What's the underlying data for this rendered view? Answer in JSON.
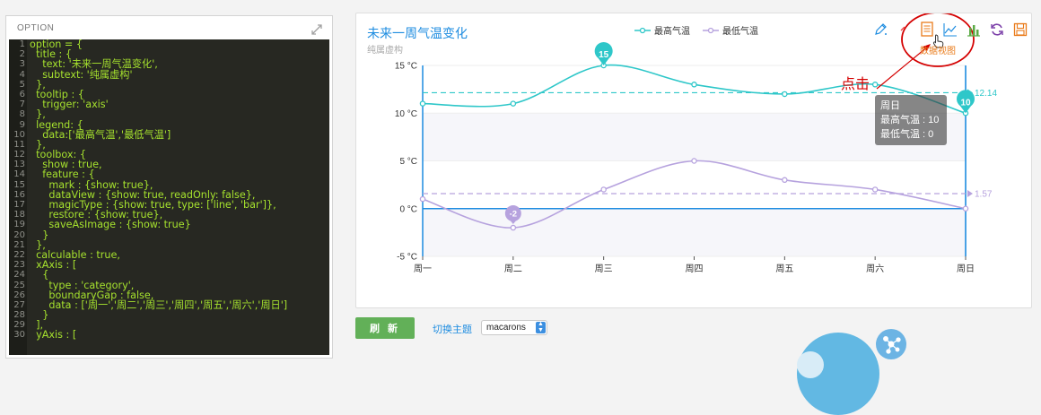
{
  "panel": {
    "header": "OPTION",
    "line_numbers": [
      "1",
      "2",
      "3",
      "4",
      "5",
      "6",
      "7",
      "8",
      "9",
      "10",
      "11",
      "12",
      "13",
      "14",
      "15",
      "16",
      "17",
      "18",
      "19",
      "20",
      "21",
      "22",
      "23",
      "24",
      "25",
      "26",
      "27",
      "28",
      "29",
      "30"
    ],
    "code_lines": [
      "option = {",
      "  title : {",
      "    text: '未来一周气温变化',",
      "    subtext: '纯属虚构'",
      "  },",
      "  tooltip : {",
      "    trigger: 'axis'",
      "  },",
      "  legend: {",
      "    data:['最高气温','最低气温']",
      "  },",
      "  toolbox: {",
      "    show : true,",
      "    feature : {",
      "      mark : {show: true},",
      "      dataView : {show: true, readOnly: false},",
      "      magicType : {show: true, type: ['line', 'bar']},",
      "      restore : {show: true},",
      "      saveAsImage : {show: true}",
      "    }",
      "  },",
      "  calculable : true,",
      "  xAxis : [",
      "    {",
      "      type : 'category',",
      "      boundaryGap : false,",
      "      data : ['周一','周二','周三','周四','周五','周六','周日']",
      "    }",
      "  ],",
      "  yAxis : ["
    ]
  },
  "toolbox": {
    "icons": [
      "mark-pencil-icon",
      "eraser-icon",
      "data-view-icon",
      "line-chart-icon",
      "bar-chart-icon",
      "restore-icon",
      "save-image-icon"
    ],
    "hover_label": "数据视图",
    "colors": {
      "blue": "#1d8ce0",
      "green": "#5bab46",
      "purple": "#7b3fa8",
      "orange": "#e97b1a"
    }
  },
  "annotation": {
    "text": "点击",
    "color": "#d40000"
  },
  "chart_data": {
    "type": "line",
    "title": "未来一周气温变化",
    "subtitle": "纯属虚构",
    "categories": [
      "周一",
      "周二",
      "周三",
      "周四",
      "周五",
      "周六",
      "周日"
    ],
    "ylim": [
      -5,
      15
    ],
    "y_ticks": [
      "15 °C",
      "10 °C",
      "5 °C",
      "0 °C",
      "-5 °C"
    ],
    "legend_position": "top-center",
    "series": [
      {
        "name": "最高气温",
        "values": [
          11,
          11,
          15,
          13,
          12,
          13,
          10
        ],
        "color": "#2ec7c9",
        "max_label": "15",
        "min_label": "10",
        "avg_label": "12.14"
      },
      {
        "name": "最低气温",
        "values": [
          1,
          -2,
          2,
          5,
          3,
          2,
          0
        ],
        "color": "#b6a2de",
        "min_label": "-2",
        "avg_label": "1.57"
      }
    ],
    "tooltip": {
      "category": "周日",
      "line1": "最高气温 : 10",
      "line2": "最低气温 : 0"
    }
  },
  "controls": {
    "refresh_label": "刷 新",
    "theme_label": "切换主题",
    "theme_value": "macarons"
  }
}
